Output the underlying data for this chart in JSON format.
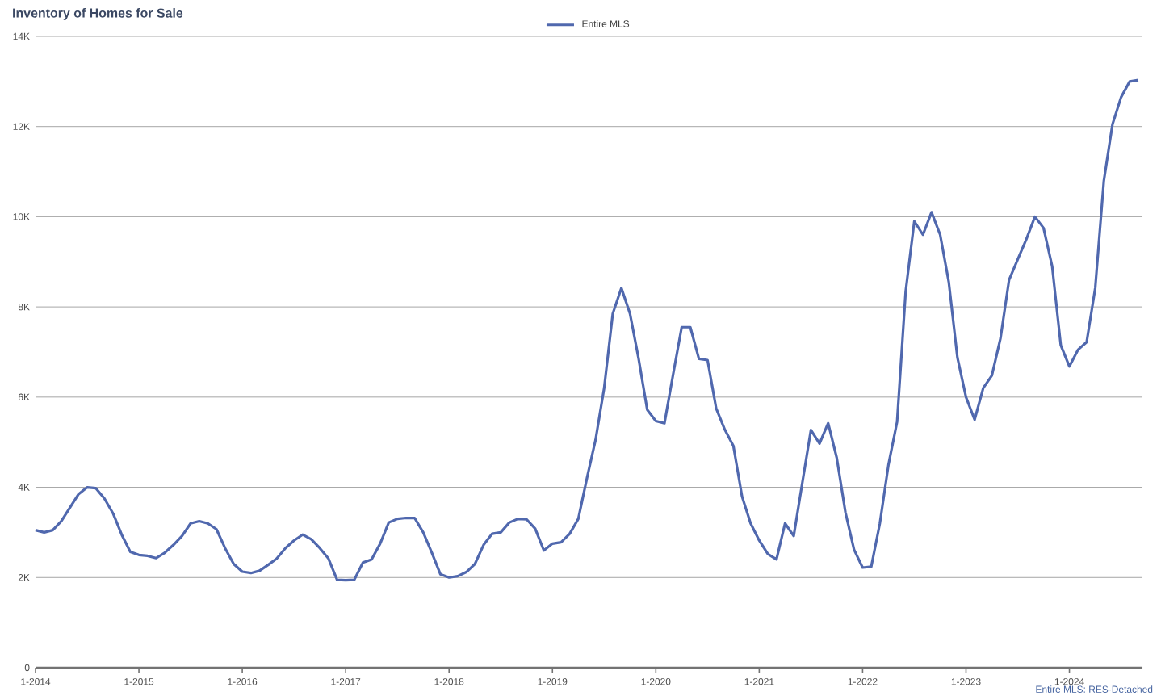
{
  "chart_data": {
    "type": "line",
    "title": "Inventory of Homes for Sale",
    "x": [
      "2014-01",
      "2014-02",
      "2014-03",
      "2014-04",
      "2014-05",
      "2014-06",
      "2014-07",
      "2014-08",
      "2014-09",
      "2014-10",
      "2014-11",
      "2014-12",
      "2015-01",
      "2015-02",
      "2015-03",
      "2015-04",
      "2015-05",
      "2015-06",
      "2015-07",
      "2015-08",
      "2015-09",
      "2015-10",
      "2015-11",
      "2015-12",
      "2016-01",
      "2016-02",
      "2016-03",
      "2016-04",
      "2016-05",
      "2016-06",
      "2016-07",
      "2016-08",
      "2016-09",
      "2016-10",
      "2016-11",
      "2016-12",
      "2017-01",
      "2017-02",
      "2017-03",
      "2017-04",
      "2017-05",
      "2017-06",
      "2017-07",
      "2017-08",
      "2017-09",
      "2017-10",
      "2017-11",
      "2017-12",
      "2018-01",
      "2018-02",
      "2018-03",
      "2018-04",
      "2018-05",
      "2018-06",
      "2018-07",
      "2018-08",
      "2018-09",
      "2018-10",
      "2018-11",
      "2018-12",
      "2019-01",
      "2019-02",
      "2019-03",
      "2019-04",
      "2019-05",
      "2019-06",
      "2019-07",
      "2019-08",
      "2019-09",
      "2019-10",
      "2019-11",
      "2019-12",
      "2020-01",
      "2020-02",
      "2020-03",
      "2020-04",
      "2020-05",
      "2020-06",
      "2020-07",
      "2020-08",
      "2020-09",
      "2020-10",
      "2020-11",
      "2020-12",
      "2021-01",
      "2021-02",
      "2021-03",
      "2021-04",
      "2021-05",
      "2021-06",
      "2021-07",
      "2021-08",
      "2021-09",
      "2021-10",
      "2021-11",
      "2021-12",
      "2022-01",
      "2022-02",
      "2022-03",
      "2022-04",
      "2022-05",
      "2022-06",
      "2022-07",
      "2022-08",
      "2022-09",
      "2022-10",
      "2022-11",
      "2022-12",
      "2023-01",
      "2023-02",
      "2023-03",
      "2023-04",
      "2023-05",
      "2023-06",
      "2023-07",
      "2023-08",
      "2023-09",
      "2023-10",
      "2023-11",
      "2023-12",
      "2024-01",
      "2024-02",
      "2024-03",
      "2024-04",
      "2024-05",
      "2024-06",
      "2024-07",
      "2024-08",
      "2024-09"
    ],
    "series": [
      {
        "name": "Entire MLS",
        "color": "#5068ae",
        "values": [
          3.05,
          3.0,
          3.05,
          3.25,
          3.55,
          3.85,
          4.0,
          3.98,
          3.75,
          3.42,
          2.95,
          2.57,
          2.5,
          2.48,
          2.43,
          2.55,
          2.72,
          2.92,
          3.2,
          3.25,
          3.2,
          3.07,
          2.65,
          2.3,
          2.13,
          2.1,
          2.15,
          2.28,
          2.42,
          2.65,
          2.82,
          2.95,
          2.85,
          2.65,
          2.42,
          1.95,
          1.94,
          1.95,
          2.33,
          2.4,
          2.75,
          3.22,
          3.3,
          3.32,
          3.32,
          3.0,
          2.55,
          2.07,
          2.0,
          2.03,
          2.12,
          2.3,
          2.72,
          2.97,
          3.0,
          3.22,
          3.3,
          3.29,
          3.08,
          2.6,
          2.75,
          2.78,
          2.97,
          3.3,
          4.2,
          5.05,
          6.2,
          7.85,
          8.42,
          7.85,
          6.85,
          5.72,
          5.47,
          5.42,
          6.5,
          7.55,
          7.55,
          6.85,
          6.82,
          5.75,
          5.28,
          4.92,
          3.8,
          3.2,
          2.82,
          2.52,
          2.4,
          3.2,
          2.92,
          4.1,
          5.27,
          4.97,
          5.42,
          4.65,
          3.45,
          2.62,
          2.22,
          2.24,
          3.2,
          4.5,
          5.45,
          8.35,
          9.9,
          9.6,
          10.1,
          9.6,
          8.55,
          6.88,
          6.0,
          5.5,
          6.2,
          6.48,
          7.3,
          8.6,
          9.05,
          9.5,
          10.0,
          9.75,
          8.9,
          7.15,
          6.68,
          7.05,
          7.22,
          8.42,
          10.8,
          12.05,
          12.65,
          13.0,
          13.03
        ]
      }
    ],
    "xlim": [
      "2014-01",
      "2024-09"
    ],
    "xticks": [
      {
        "value": "2014-01",
        "label": "1-2014"
      },
      {
        "value": "2015-01",
        "label": "1-2015"
      },
      {
        "value": "2016-01",
        "label": "1-2016"
      },
      {
        "value": "2017-01",
        "label": "1-2017"
      },
      {
        "value": "2018-01",
        "label": "1-2018"
      },
      {
        "value": "2019-01",
        "label": "1-2019"
      },
      {
        "value": "2020-01",
        "label": "1-2020"
      },
      {
        "value": "2021-01",
        "label": "1-2021"
      },
      {
        "value": "2022-01",
        "label": "1-2022"
      },
      {
        "value": "2023-01",
        "label": "1-2023"
      },
      {
        "value": "2024-01",
        "label": "1-2024"
      }
    ],
    "ylim": [
      0,
      14
    ],
    "yticks": [
      0,
      {
        "value": 2,
        "label": "2K"
      },
      {
        "value": 4,
        "label": "4K"
      },
      {
        "value": 6,
        "label": "6K"
      },
      {
        "value": 8,
        "label": "8K"
      },
      {
        "value": 10,
        "label": "10K"
      },
      {
        "value": 12,
        "label": "12K"
      },
      {
        "value": 14,
        "label": "14K"
      }
    ],
    "grid": "y",
    "legend": "top",
    "annotations": [
      "Entire MLS: RES-Detached"
    ]
  }
}
